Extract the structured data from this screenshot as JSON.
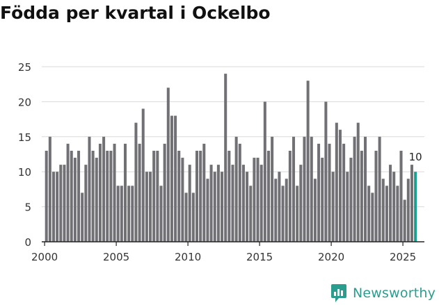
{
  "page": {
    "title": "Födda per kvartal i Ockelbo",
    "brand": "Newsworthy"
  },
  "colors": {
    "bar": "#717075",
    "highlight": "#1a9e8f",
    "grid": "#d9d9d9",
    "axis": "#222222",
    "text": "#333333",
    "brand": "#2a9d8f"
  },
  "chart_data": {
    "type": "bar",
    "title": "Födda per kvartal i Ockelbo",
    "xlabel": "",
    "ylabel": "",
    "ylim": [
      0,
      25
    ],
    "xlim": [
      1999.8,
      2026.5
    ],
    "yticks": [
      0,
      5,
      10,
      15,
      20,
      25
    ],
    "xticks": [
      2000,
      2005,
      2010,
      2015,
      2020,
      2025
    ],
    "grid": true,
    "start_year": 2000,
    "periods_per_year": 4,
    "values": [
      13,
      15,
      10,
      10,
      11,
      11,
      14,
      13,
      12,
      13,
      7,
      11,
      15,
      13,
      12,
      14,
      15,
      13,
      13,
      14,
      8,
      8,
      14,
      8,
      8,
      17,
      14,
      19,
      10,
      10,
      13,
      13,
      8,
      14,
      22,
      18,
      18,
      13,
      12,
      7,
      11,
      7,
      13,
      13,
      14,
      9,
      11,
      10,
      11,
      10,
      24,
      13,
      11,
      15,
      14,
      11,
      10,
      8,
      12,
      12,
      11,
      20,
      13,
      15,
      9,
      10,
      8,
      9,
      13,
      15,
      8,
      11,
      15,
      23,
      15,
      9,
      14,
      12,
      20,
      14,
      10,
      17,
      16,
      14,
      10,
      12,
      15,
      17,
      13,
      15,
      8,
      7,
      13,
      15,
      9,
      8,
      11,
      10,
      8,
      13,
      6,
      9,
      11,
      10
    ],
    "highlight_last": true,
    "last_label": "10"
  }
}
